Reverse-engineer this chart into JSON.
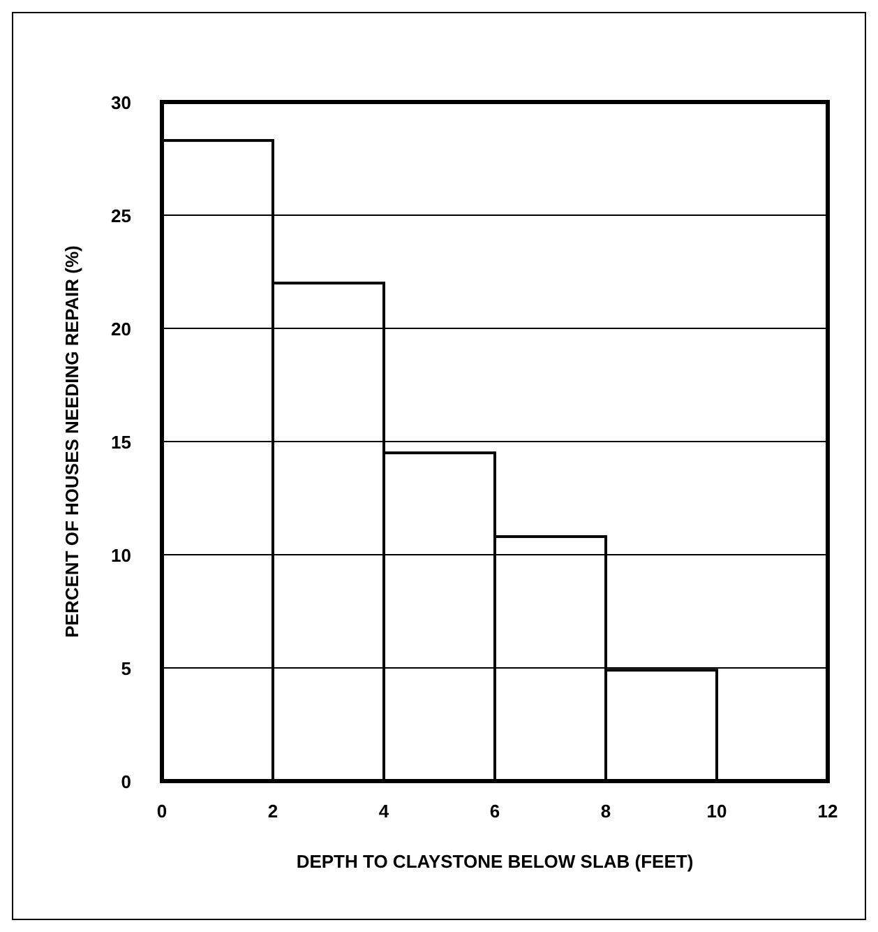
{
  "chart_data": {
    "type": "histogram",
    "xlabel": "DEPTH TO CLAYSTONE BELOW SLAB (FEET)",
    "ylabel": "PERCENT OF HOUSES NEEDING REPAIR (%)",
    "bins": [
      0,
      2,
      4,
      6,
      8,
      10
    ],
    "values": [
      28.3,
      22.0,
      14.5,
      10.8,
      4.9
    ],
    "color": "#ffffff",
    "xlim": [
      0,
      12
    ],
    "xticks": [
      0,
      2,
      4,
      6,
      8,
      10,
      12
    ],
    "ylim": [
      0,
      30
    ],
    "yticks": [
      0,
      5,
      10,
      15,
      20,
      25,
      30
    ],
    "grid": "y"
  }
}
